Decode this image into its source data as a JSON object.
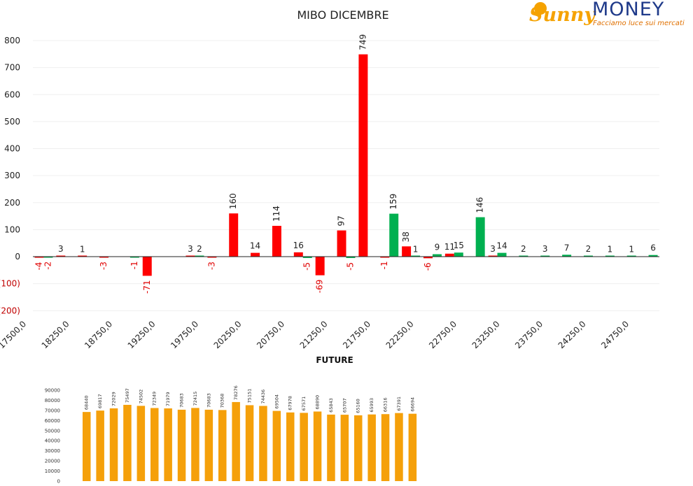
{
  "logo": {
    "sunny": "Sunny",
    "money": "MONEY",
    "tagline": "Facciamo luce sui mercati",
    "colors": {
      "sunny": "#f5a200",
      "money": "#1f3a8a",
      "tagline": "#e07000"
    }
  },
  "chart_data": [
    {
      "type": "bar",
      "title": "MIBO DICEMBRE",
      "xlabel": "",
      "ylabel": "",
      "ylim": [
        -200,
        800
      ],
      "yticks": [
        800,
        700,
        600,
        500,
        400,
        300,
        200,
        100,
        0,
        -100,
        -200
      ],
      "ytick_labels": [
        "800",
        "700",
        "600",
        "500",
        "400",
        "300",
        "200",
        "100",
        "0",
        "(100)",
        "(200)"
      ],
      "grid": true,
      "legend": "none",
      "x_tick_labels": [
        "17500,0",
        "18250,0",
        "18750,0",
        "19250,0",
        "19750,0",
        "20250,0",
        "20750,0",
        "21250,0",
        "21750,0",
        "22250,0",
        "22750,0",
        "23250,0",
        "23750,0",
        "24250,0",
        "24750,0"
      ],
      "category_count": 29,
      "colors": {
        "red": "#ff0000",
        "green": "#00b050",
        "negative_label": "#e00000"
      },
      "series": [
        {
          "color": "red",
          "values": [
            -4,
            3,
            1,
            -3,
            null,
            -71,
            null,
            3,
            -3,
            160,
            14,
            114,
            16,
            -69,
            97,
            749,
            -1,
            38,
            -6,
            11,
            null,
            3,
            null,
            null,
            null,
            null,
            null,
            null,
            null
          ],
          "labels": [
            "-4",
            "3",
            "1",
            "-3",
            "",
            "-71",
            "",
            "3",
            "-3",
            "160",
            "14",
            "114",
            "16",
            "-69",
            "97",
            "749",
            "-1",
            "38",
            "-6",
            "11",
            "",
            "3",
            "",
            "",
            "",
            "",
            "",
            "",
            ""
          ]
        },
        {
          "color": "green",
          "values": [
            -2,
            null,
            null,
            null,
            -1,
            null,
            null,
            2,
            null,
            null,
            null,
            null,
            -5,
            null,
            -5,
            null,
            159,
            1,
            9,
            15,
            146,
            14,
            2,
            3,
            7,
            2,
            1,
            1,
            6
          ],
          "labels": [
            "-2",
            "",
            "",
            "",
            "-1",
            "",
            "",
            "2",
            "",
            "",
            "",
            "",
            "-5",
            "",
            "-5",
            "",
            "159",
            "1",
            "9",
            "15",
            "146",
            "14",
            "2",
            "3",
            "7",
            "2",
            "1",
            "1",
            "6"
          ]
        }
      ]
    },
    {
      "type": "bar",
      "title": "FUTURE",
      "xlabel": "",
      "ylabel": "",
      "ylim": [
        0,
        90000
      ],
      "yticks": [
        90000,
        80000,
        70000,
        60000,
        50000,
        40000,
        30000,
        20000,
        10000,
        0
      ],
      "grid": false,
      "legend": "none",
      "colors": {
        "bar": "#f5a00a"
      },
      "values": [
        68440,
        69817,
        72029,
        75497,
        74502,
        72349,
        71979,
        70683,
        72415,
        70683,
        70368,
        78276,
        75151,
        74436,
        69504,
        67978,
        67571,
        68890,
        65843,
        65707,
        65160,
        65993,
        66316,
        67391,
        66694
      ]
    }
  ]
}
